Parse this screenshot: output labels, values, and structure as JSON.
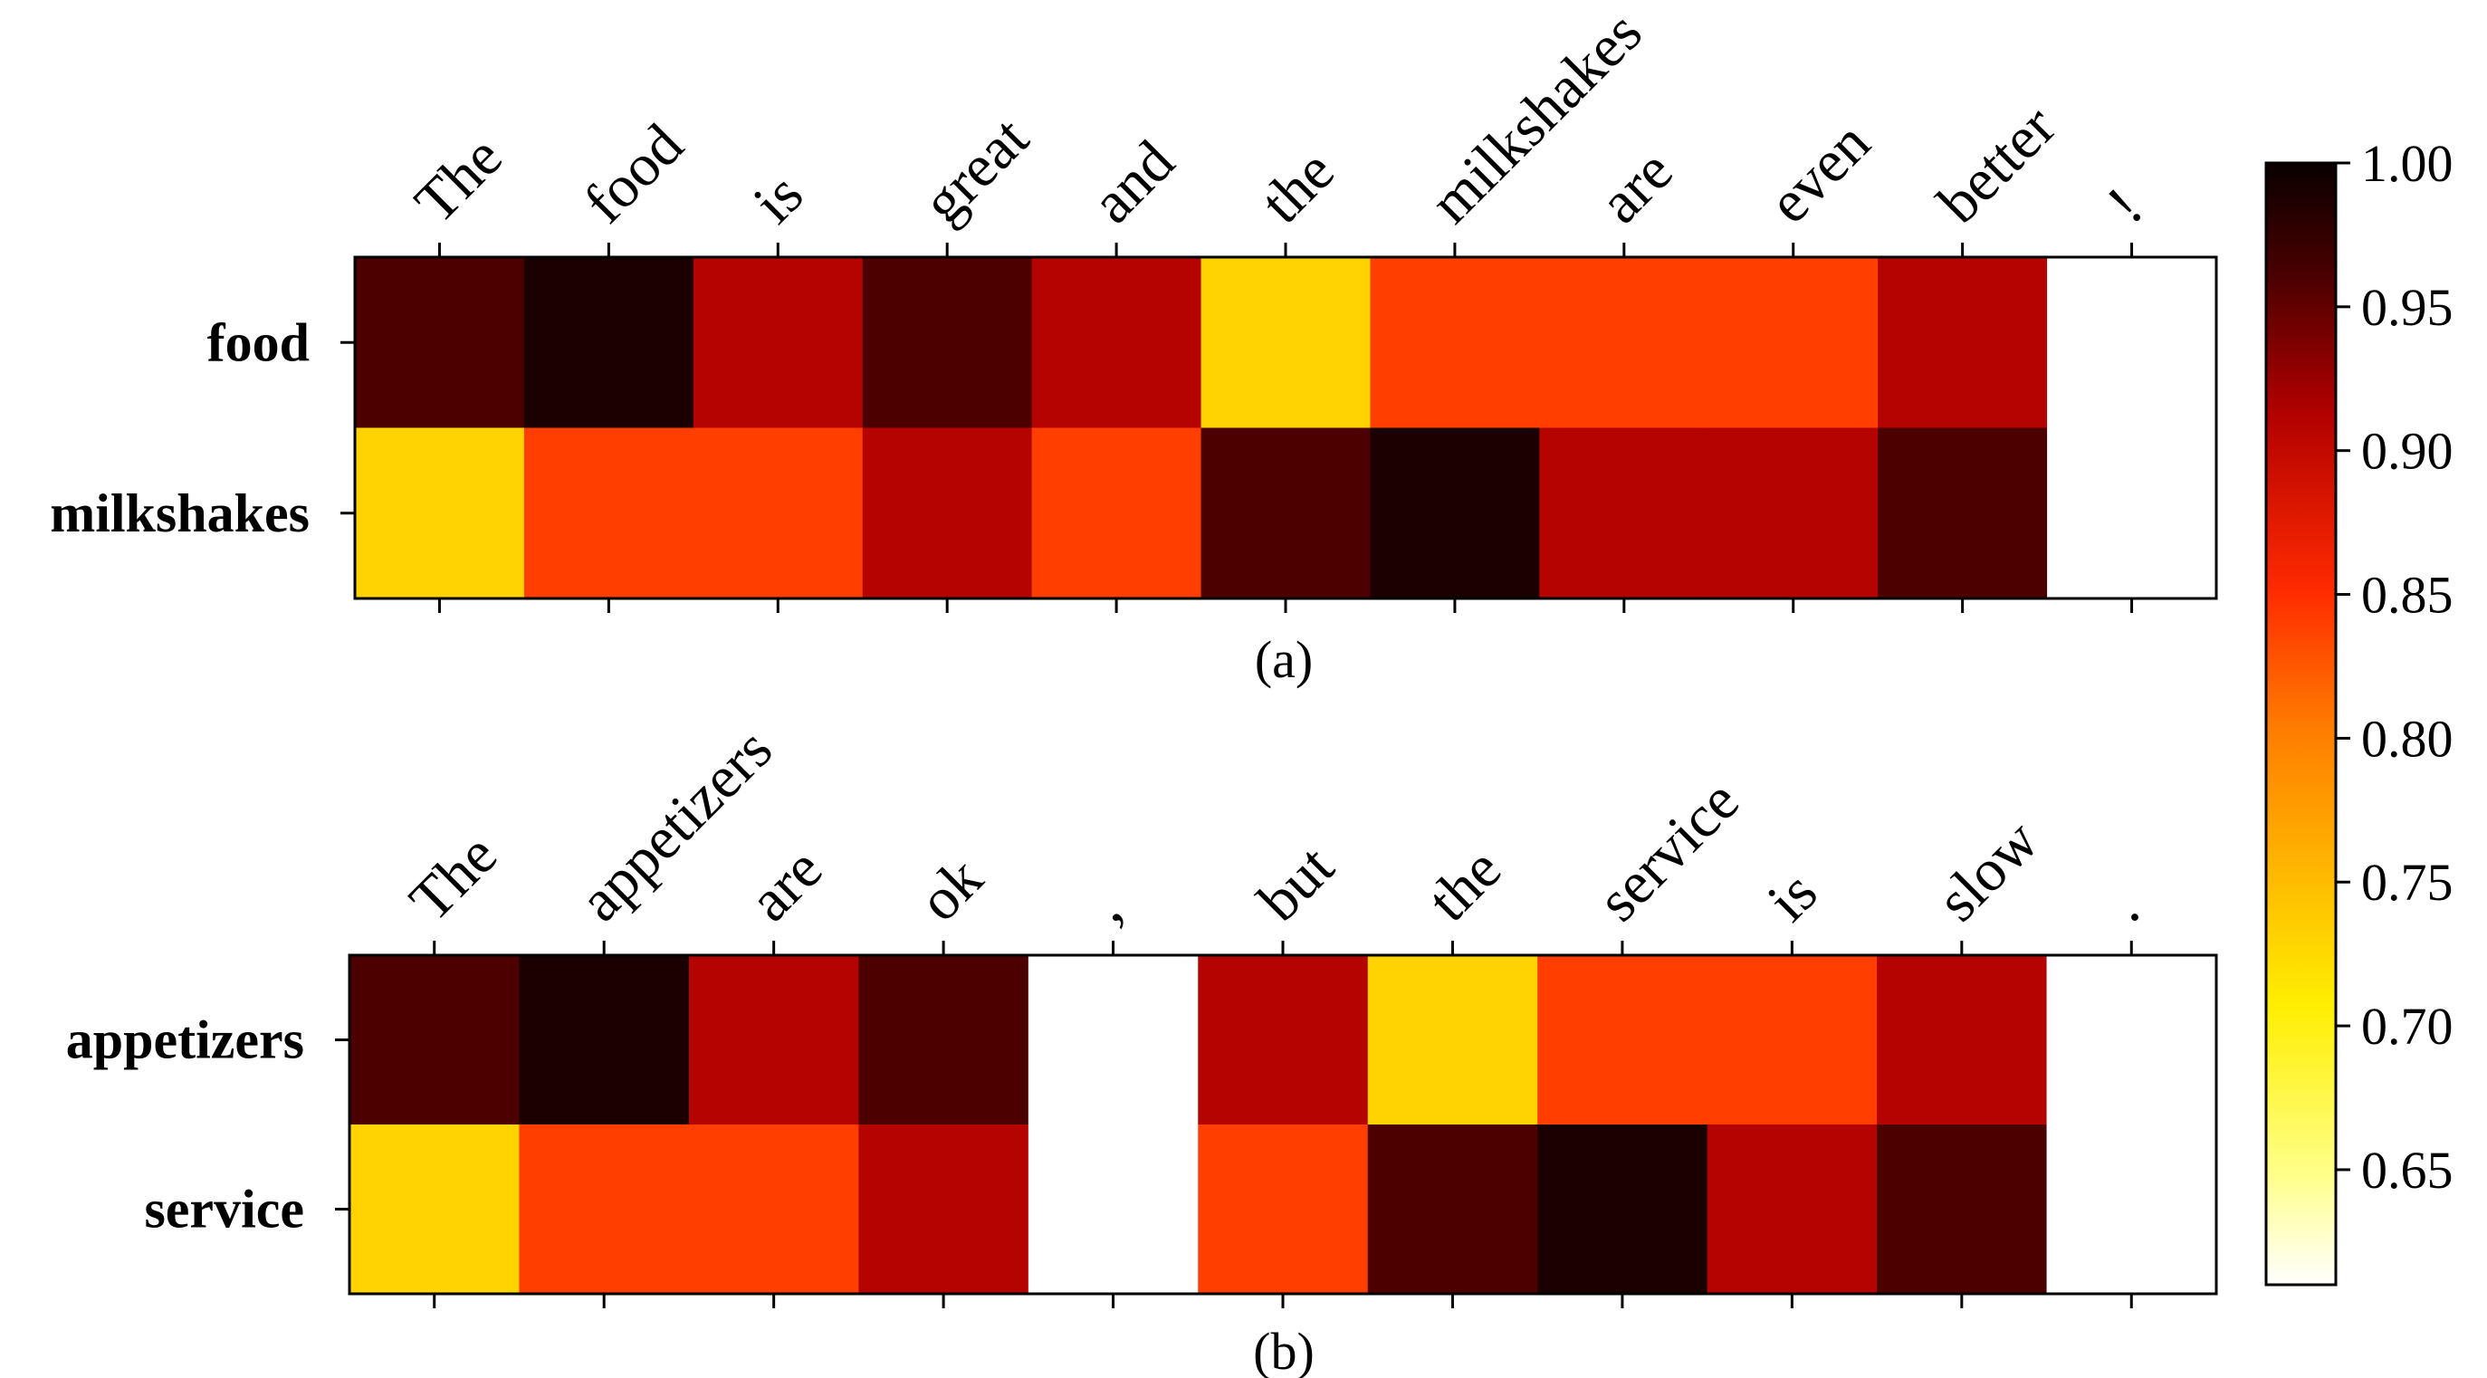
{
  "chart_data": [
    {
      "type": "heatmap",
      "caption": "(a)",
      "x_tokens": [
        "The",
        "food",
        "is",
        "great",
        "and",
        "the",
        "milkshakes",
        "are",
        "even",
        "better",
        "!"
      ],
      "y_labels": [
        "food",
        "milkshakes"
      ],
      "values": [
        [
          0.96,
          0.99,
          0.91,
          0.96,
          0.91,
          0.73,
          0.84,
          0.84,
          0.84,
          0.91,
          0.61
        ],
        [
          0.73,
          0.84,
          0.84,
          0.91,
          0.84,
          0.96,
          0.99,
          0.91,
          0.91,
          0.96,
          0.61
        ]
      ]
    },
    {
      "type": "heatmap",
      "caption": "(b)",
      "x_tokens": [
        "The",
        "appetizers",
        "are",
        "ok",
        ",",
        "but",
        "the",
        "service",
        "is",
        "slow",
        "."
      ],
      "y_labels": [
        "appetizers",
        "service"
      ],
      "values": [
        [
          0.96,
          0.99,
          0.91,
          0.96,
          0.61,
          0.91,
          0.73,
          0.84,
          0.84,
          0.91,
          0.61
        ],
        [
          0.73,
          0.84,
          0.84,
          0.91,
          0.61,
          0.84,
          0.96,
          0.99,
          0.91,
          0.96,
          0.61
        ]
      ]
    }
  ],
  "colorbar": {
    "colormap": "hot_r",
    "min": 0.61,
    "max": 1.0,
    "ticks": [
      "1.00",
      "0.95",
      "0.90",
      "0.85",
      "0.80",
      "0.75",
      "0.70",
      "0.65"
    ]
  }
}
